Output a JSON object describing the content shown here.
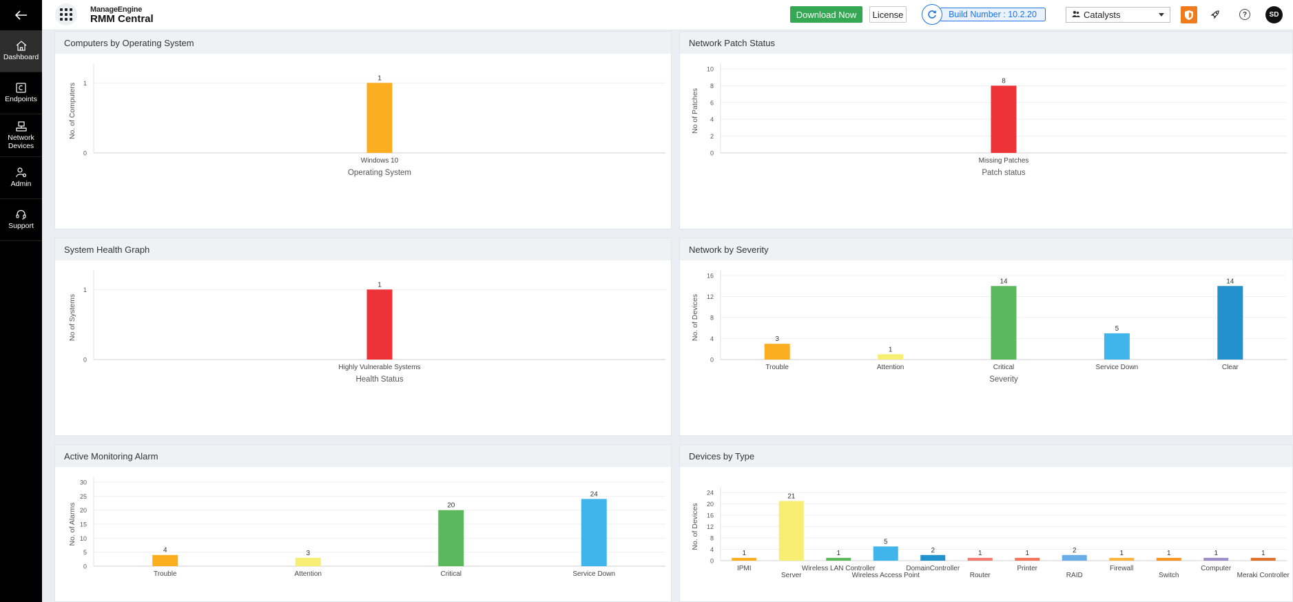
{
  "header": {
    "back_icon": "arrow-left-icon",
    "apps_icon": "grid-icon",
    "brand_maker": "ManageEngine",
    "brand_product": "RMM Central",
    "download_label": "Download Now",
    "license_label": "License",
    "build_label": "Build Number : 10.2.20",
    "customer_value": "Catalysts",
    "accent": "#35a854",
    "link_color": "#1a73e8",
    "avatar_initials": "SD"
  },
  "sidebar": {
    "items": [
      {
        "label": "Dashboard",
        "icon": "home-icon",
        "active": true
      },
      {
        "label": "Endpoints",
        "icon": "endpoints-icon",
        "active": false
      },
      {
        "label": "Network Devices",
        "icon": "network-devices-icon",
        "active": false
      },
      {
        "label": "Admin",
        "icon": "admin-icon",
        "active": false
      },
      {
        "label": "Support",
        "icon": "headset-icon",
        "active": false
      }
    ]
  },
  "panels": {
    "computers_os": {
      "title": "Computers by Operating System"
    },
    "patch_status": {
      "title": "Network Patch Status"
    },
    "health": {
      "title": "System Health Graph"
    },
    "severity": {
      "title": "Network by Severity"
    },
    "alarms": {
      "title": "Active Monitoring Alarm"
    },
    "device_types": {
      "title": "Devices by Type"
    }
  },
  "chart_data": [
    {
      "id": "computers_os",
      "type": "bar",
      "title": "Computers by Operating System",
      "xlabel": "Operating System",
      "ylabel": "No. of Computers",
      "categories": [
        "Windows 10"
      ],
      "values": [
        1
      ],
      "colors": [
        "#fbae1f"
      ],
      "yticks": [
        0,
        1
      ],
      "ylim": [
        0,
        1.2
      ],
      "grid": true
    },
    {
      "id": "patch_status",
      "type": "bar",
      "title": "Network Patch Status",
      "xlabel": "Patch status",
      "ylabel": "No of Patches",
      "categories": [
        "Missing Patches"
      ],
      "values": [
        8
      ],
      "colors": [
        "#ee3338"
      ],
      "yticks": [
        0,
        2,
        4,
        6,
        8,
        10
      ],
      "ylim": [
        0,
        10
      ],
      "grid": true
    },
    {
      "id": "health",
      "type": "bar",
      "title": "System Health Graph",
      "xlabel": "Health Status",
      "ylabel": "No of Systems",
      "categories": [
        "Highly Vulnerable Systems"
      ],
      "values": [
        1
      ],
      "colors": [
        "#ee3338"
      ],
      "yticks": [
        0,
        1
      ],
      "ylim": [
        0,
        1.2
      ],
      "grid": true
    },
    {
      "id": "severity",
      "type": "bar",
      "title": "Network by Severity",
      "xlabel": "Severity",
      "ylabel": "No. of Devices",
      "categories": [
        "Trouble",
        "Attention",
        "Critical",
        "Service Down",
        "Clear"
      ],
      "values": [
        3,
        1,
        14,
        5,
        14
      ],
      "colors": [
        "#fbae1f",
        "#f7ee73",
        "#5cb85c",
        "#3fb5ec",
        "#2391cc"
      ],
      "yticks": [
        0,
        4,
        8,
        12,
        16
      ],
      "ylim": [
        0,
        16
      ],
      "grid": true
    },
    {
      "id": "alarms",
      "type": "bar",
      "title": "Active Monitoring Alarm",
      "xlabel": "",
      "ylabel": "No. of Alarms",
      "categories": [
        "Trouble",
        "Attention",
        "Critical",
        "Service Down"
      ],
      "values": [
        4,
        3,
        20,
        24
      ],
      "colors": [
        "#fbae1f",
        "#f7ee73",
        "#5cb85c",
        "#3fb5ec"
      ],
      "yticks": [
        0,
        5,
        10,
        15,
        20,
        25,
        30
      ],
      "ylim": [
        0,
        30
      ],
      "grid": true
    },
    {
      "id": "device_types",
      "type": "bar",
      "title": "Devices by Type",
      "xlabel": "",
      "ylabel": "No. of Devices",
      "categories": [
        "IPMI",
        "Server",
        "Wireless LAN Controller",
        "Wireless Access Point",
        "DomainController",
        "Router",
        "Printer",
        "RAID",
        "Firewall",
        "Switch",
        "Computer",
        "Meraki Controller"
      ],
      "values": [
        1,
        21,
        1,
        5,
        2,
        1,
        1,
        2,
        1,
        1,
        1,
        1
      ],
      "colors": [
        "#fbae1f",
        "#f7ee73",
        "#5cb85c",
        "#3fb5ec",
        "#2391cc",
        "#f4796e",
        "#f47458",
        "#69aee6",
        "#fbb53e",
        "#f7941d",
        "#9a8fc8",
        "#e0702b"
      ],
      "yticks": [
        0,
        4,
        8,
        12,
        16,
        20,
        24
      ],
      "ylim": [
        0,
        24
      ],
      "grid": true
    }
  ]
}
